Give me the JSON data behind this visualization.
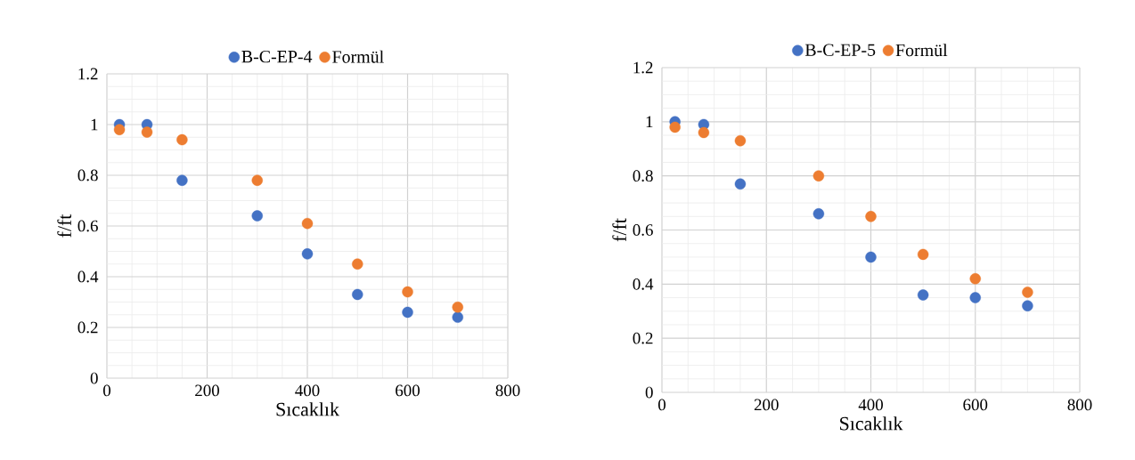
{
  "chart_data": [
    {
      "type": "scatter",
      "xlabel": "Sıcaklık",
      "ylabel": "f/ft",
      "x": [
        25,
        80,
        150,
        300,
        400,
        500,
        600,
        700
      ],
      "xlim": [
        0,
        800
      ],
      "ylim": [
        0,
        1.2
      ],
      "xticks": [
        0,
        200,
        400,
        600,
        800
      ],
      "yticks": [
        0,
        0.2,
        0.4,
        0.6,
        0.8,
        1,
        1.2
      ],
      "grid": true,
      "legend": "top",
      "series": [
        {
          "name": "B-C-EP-4",
          "color": "#4472c4",
          "values": [
            1.0,
            1.0,
            0.78,
            0.64,
            0.49,
            0.33,
            0.26,
            0.24
          ]
        },
        {
          "name": "Formül",
          "color": "#ed7d31",
          "values": [
            0.98,
            0.97,
            0.94,
            0.78,
            0.61,
            0.45,
            0.34,
            0.28
          ]
        }
      ]
    },
    {
      "type": "scatter",
      "xlabel": "Sıcaklık",
      "ylabel": "f/ft",
      "x": [
        25,
        80,
        150,
        300,
        400,
        500,
        600,
        700
      ],
      "xlim": [
        0,
        800
      ],
      "ylim": [
        0,
        1.2
      ],
      "xticks": [
        0,
        200,
        400,
        600,
        800
      ],
      "yticks": [
        0,
        0.2,
        0.4,
        0.6,
        0.8,
        1,
        1.2
      ],
      "grid": true,
      "legend": "top",
      "series": [
        {
          "name": "B-C-EP-5",
          "color": "#4472c4",
          "values": [
            1.0,
            0.99,
            0.77,
            0.66,
            0.5,
            0.36,
            0.35,
            0.32
          ]
        },
        {
          "name": "Formül",
          "color": "#ed7d31",
          "values": [
            0.98,
            0.96,
            0.93,
            0.8,
            0.65,
            0.51,
            0.42,
            0.37
          ]
        }
      ]
    }
  ]
}
